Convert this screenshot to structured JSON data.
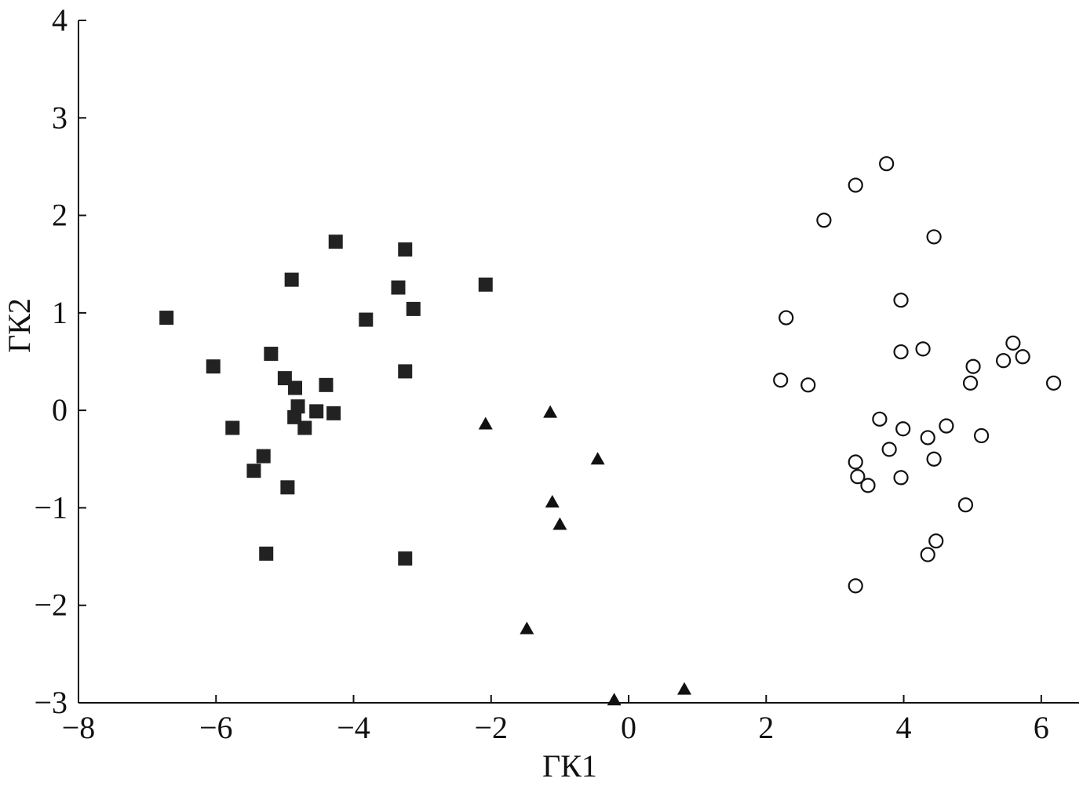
{
  "chart_data": {
    "type": "scatter",
    "xlabel": "ГК1",
    "ylabel": "ГК2",
    "xlim": [
      -8,
      6.55
    ],
    "ylim": [
      -3,
      4
    ],
    "xticks": [
      {
        "value": -8,
        "label": "−8"
      },
      {
        "value": -6,
        "label": "−6"
      },
      {
        "value": -4,
        "label": "−4"
      },
      {
        "value": -2,
        "label": "−2"
      },
      0,
      2,
      4,
      6
    ],
    "yticks": [
      {
        "value": -3,
        "label": "−3"
      },
      {
        "value": -2,
        "label": "−2"
      },
      {
        "value": -1,
        "label": "−1"
      },
      0,
      1,
      2,
      3,
      4
    ],
    "grid": false,
    "series": [
      {
        "marker": "square",
        "color": "#222222",
        "x": [
          -6.72,
          -6.04,
          -4.26,
          -3.25,
          -4.9,
          -2.08,
          -3.35,
          -3.13,
          -3.82,
          -5.2,
          -3.25,
          -5.0,
          -4.4,
          -4.85,
          -4.81,
          -4.54,
          -4.29,
          -4.86,
          -4.71,
          -5.76,
          -5.31,
          -5.45,
          -4.96,
          -5.27,
          -3.25
        ],
        "y": [
          0.95,
          0.45,
          1.73,
          1.65,
          1.34,
          1.29,
          1.26,
          1.04,
          0.93,
          0.58,
          0.4,
          0.33,
          0.26,
          0.23,
          0.04,
          -0.01,
          -0.03,
          -0.07,
          -0.18,
          -0.18,
          -0.47,
          -0.62,
          -0.79,
          -1.47,
          -1.52
        ]
      },
      {
        "marker": "triangle",
        "color": "#111111",
        "x": [
          -1.14,
          -2.08,
          -0.45,
          -1.11,
          -1.0,
          -1.48,
          0.81,
          -0.21
        ],
        "y": [
          -0.02,
          -0.14,
          -0.5,
          -0.94,
          -1.17,
          -2.24,
          -2.86,
          -2.97
        ]
      },
      {
        "marker": "circle-open",
        "color": "#111111",
        "x": [
          3.75,
          3.3,
          2.84,
          4.44,
          3.96,
          2.29,
          5.59,
          3.96,
          4.28,
          5.73,
          5.45,
          5.01,
          2.21,
          2.61,
          4.97,
          6.18,
          3.65,
          3.99,
          4.62,
          4.35,
          5.13,
          3.79,
          4.44,
          3.3,
          3.33,
          3.48,
          3.96,
          4.9,
          4.47,
          4.35,
          3.3
        ],
        "y": [
          2.53,
          2.31,
          1.95,
          1.78,
          1.13,
          0.95,
          0.69,
          0.6,
          0.63,
          0.55,
          0.51,
          0.45,
          0.31,
          0.26,
          0.28,
          0.28,
          -0.09,
          -0.19,
          -0.16,
          -0.28,
          -0.26,
          -0.4,
          -0.5,
          -0.53,
          -0.68,
          -0.77,
          -0.69,
          -0.97,
          -1.34,
          -1.48,
          -1.8
        ]
      }
    ]
  }
}
